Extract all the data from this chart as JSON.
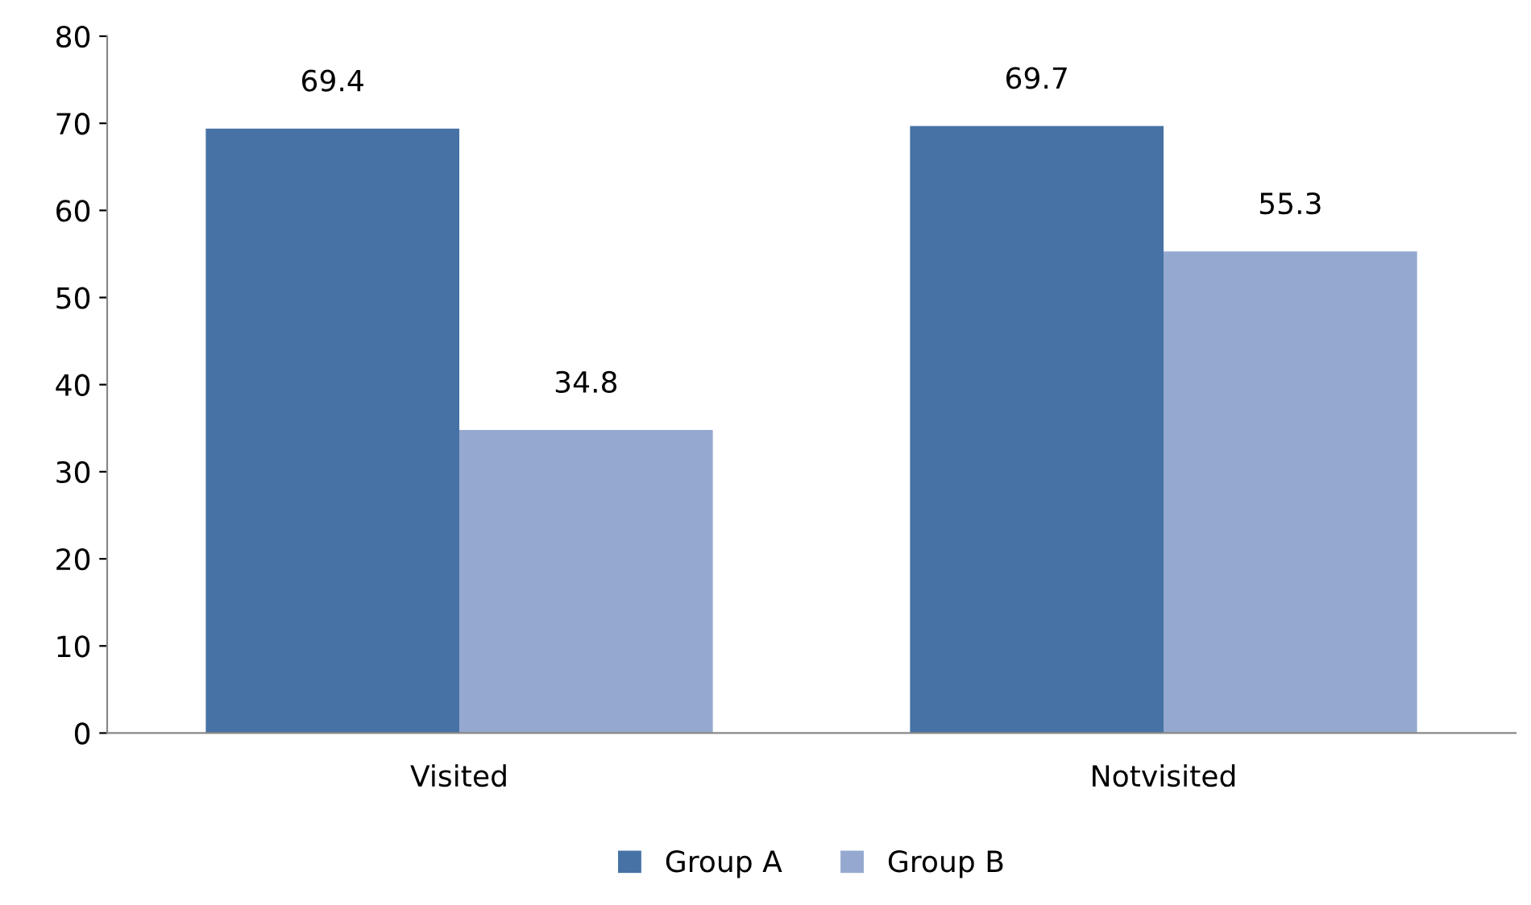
{
  "chart_data": {
    "type": "bar",
    "categories": [
      "Visited",
      "Notvisited"
    ],
    "series": [
      {
        "name": "Group A",
        "color": "#4672a6",
        "values": [
          69.4,
          69.7
        ]
      },
      {
        "name": "Group B",
        "color": "#95a9d0",
        "values": [
          34.8,
          55.3
        ]
      }
    ],
    "ylim": [
      0,
      80
    ],
    "yticks": [
      0,
      10,
      20,
      30,
      40,
      50,
      60,
      70,
      80
    ],
    "data_labels": true,
    "legend": "bottom",
    "grid": false
  }
}
